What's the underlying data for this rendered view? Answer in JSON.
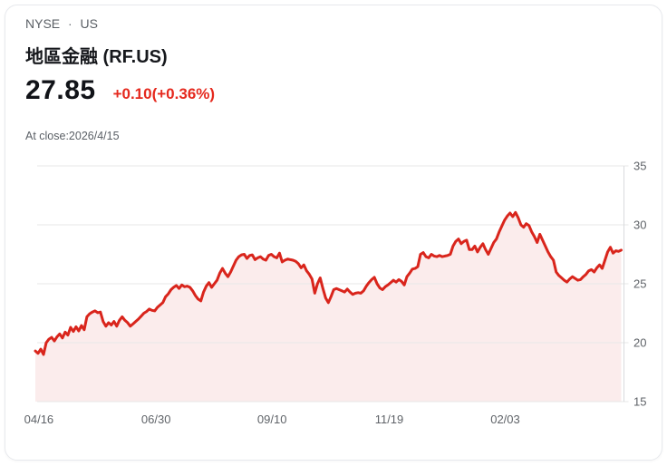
{
  "header": {
    "exchange": "NYSE",
    "separator": "·",
    "region": "US",
    "title": "地區金融 (RF.US)",
    "price": "27.85",
    "change": "+0.10(+0.36%)",
    "as_of": "At close:2026/4/15"
  },
  "colors": {
    "change_red": "#e5291e",
    "line_red": "#d9251c",
    "area_pink": "#fbecec",
    "grid": "#e7e7e7",
    "axis_line": "#d8dadd",
    "axis_text": "#5f6368",
    "title_dark": "#16181c",
    "muted_text": "#5b6066"
  },
  "chart_data": {
    "type": "area",
    "title": "",
    "xlabel": "",
    "ylabel": "",
    "ylim": [
      15,
      35
    ],
    "grid": true,
    "legend": false,
    "yticks": [
      35,
      30,
      25,
      20,
      15
    ],
    "xticks": [
      {
        "label": "04/16",
        "f": 0.006
      },
      {
        "label": "06/30",
        "f": 0.206
      },
      {
        "label": "09/10",
        "f": 0.404
      },
      {
        "label": "11/19",
        "f": 0.604
      },
      {
        "label": "02/03",
        "f": 0.802
      }
    ],
    "prices": [
      19.3,
      19.1,
      19.45,
      19.0,
      20.0,
      20.3,
      20.45,
      20.15,
      20.5,
      20.75,
      20.4,
      20.9,
      20.65,
      21.3,
      20.95,
      21.35,
      21.0,
      21.45,
      21.1,
      22.2,
      22.45,
      22.6,
      22.7,
      22.55,
      22.6,
      21.8,
      21.4,
      21.7,
      21.5,
      21.8,
      21.4,
      21.9,
      22.2,
      21.9,
      21.7,
      21.4,
      21.6,
      21.8,
      22.0,
      22.25,
      22.5,
      22.65,
      22.85,
      22.75,
      22.7,
      23.0,
      23.2,
      23.4,
      23.9,
      24.15,
      24.5,
      24.7,
      24.85,
      24.6,
      24.9,
      24.75,
      24.8,
      24.7,
      24.4,
      24.0,
      23.7,
      23.55,
      24.3,
      24.8,
      25.1,
      24.7,
      25.0,
      25.3,
      25.9,
      26.3,
      25.9,
      25.6,
      26.0,
      26.5,
      27.0,
      27.3,
      27.45,
      27.5,
      27.15,
      27.4,
      27.45,
      27.05,
      27.2,
      27.3,
      27.1,
      27.0,
      27.4,
      27.5,
      27.3,
      27.2,
      27.6,
      26.85,
      27.0,
      27.1,
      27.05,
      27.0,
      26.9,
      26.7,
      26.35,
      26.6,
      26.1,
      25.8,
      25.4,
      24.2,
      25.0,
      25.5,
      24.6,
      23.8,
      23.4,
      23.9,
      24.5,
      24.6,
      24.5,
      24.4,
      24.3,
      24.55,
      24.3,
      24.1,
      24.2,
      24.25,
      24.2,
      24.4,
      24.8,
      25.1,
      25.35,
      25.55,
      25.0,
      24.65,
      24.5,
      24.75,
      24.9,
      25.1,
      25.3,
      25.15,
      25.35,
      25.2,
      24.9,
      25.6,
      25.9,
      26.25,
      26.3,
      26.45,
      27.5,
      27.65,
      27.3,
      27.2,
      27.5,
      27.35,
      27.3,
      27.4,
      27.3,
      27.35,
      27.4,
      27.5,
      28.2,
      28.6,
      28.8,
      28.4,
      28.6,
      28.7,
      27.9,
      27.9,
      28.2,
      27.7,
      28.1,
      28.4,
      27.9,
      27.5,
      28.0,
      28.5,
      28.8,
      29.4,
      29.9,
      30.4,
      30.75,
      31.0,
      30.7,
      31.05,
      30.6,
      30.0,
      29.8,
      30.1,
      29.95,
      29.4,
      29.0,
      28.5,
      29.2,
      28.7,
      28.2,
      27.7,
      27.3,
      27.0,
      26.0,
      25.7,
      25.5,
      25.3,
      25.15,
      25.4,
      25.6,
      25.45,
      25.3,
      25.35,
      25.6,
      25.8,
      26.1,
      26.2,
      26.0,
      26.35,
      26.6,
      26.3,
      27.0,
      27.7,
      28.1,
      27.6,
      27.8,
      27.75,
      27.85
    ]
  }
}
